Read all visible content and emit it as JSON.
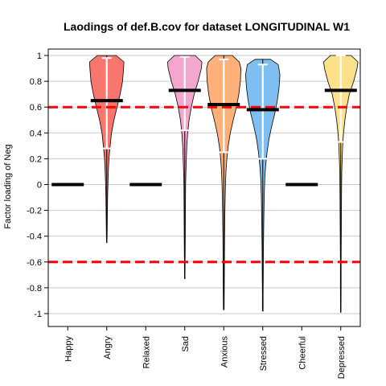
{
  "chart_data": {
    "type": "violin",
    "title": "Laodings of def.B.cov for dataset LONGITUDINAL W1",
    "xlabel": "",
    "ylabel": "Factor loading of Neg",
    "ylim": [
      -1.1,
      1.05
    ],
    "yticks": [
      "1",
      "0.8",
      "0.6",
      "0.4",
      "0.2",
      "0",
      "-0.2",
      "-0.4",
      "-0.6",
      "-0.8",
      "-1"
    ],
    "ytick_values": [
      1,
      0.8,
      0.6,
      0.4,
      0.2,
      0,
      -0.2,
      -0.4,
      -0.6,
      -0.8,
      -1
    ],
    "grid": true,
    "reference_lines": [
      0.6,
      -0.6
    ],
    "reference_line_color": "#ff0000",
    "categories": [
      "Happy",
      "Angry",
      "Relaxed",
      "Sad",
      "Anxious",
      "Stressed",
      "Cheerful",
      "Depressed"
    ],
    "series": [
      {
        "category": "Happy",
        "mean": 0,
        "color": null,
        "ymin": null,
        "ymax": null,
        "q1": null,
        "q3": null,
        "widths": []
      },
      {
        "category": "Angry",
        "mean": 0.65,
        "color": "#f8766d",
        "ymin": -0.45,
        "ymax": 1.0,
        "q1": 0.28,
        "q3": 0.98,
        "widths": [
          [
            1.0,
            0.55
          ],
          [
            0.95,
            1
          ],
          [
            0.9,
            0.98
          ],
          [
            0.8,
            0.92
          ],
          [
            0.7,
            0.78
          ],
          [
            0.6,
            0.6
          ],
          [
            0.5,
            0.42
          ],
          [
            0.4,
            0.28
          ],
          [
            0.3,
            0.2
          ],
          [
            0.2,
            0.13
          ],
          [
            0.1,
            0.09
          ],
          [
            0.0,
            0.07
          ],
          [
            -0.1,
            0.05
          ],
          [
            -0.2,
            0.04
          ],
          [
            -0.3,
            0.03
          ],
          [
            -0.4,
            0.02
          ],
          [
            -0.45,
            0.01
          ]
        ]
      },
      {
        "category": "Relaxed",
        "mean": 0,
        "color": null,
        "ymin": null,
        "ymax": null,
        "q1": null,
        "q3": null,
        "widths": []
      },
      {
        "category": "Sad",
        "mean": 0.73,
        "color": "#f4a6cf",
        "ymin": -0.73,
        "ymax": 1.0,
        "q1": 0.42,
        "q3": 0.99,
        "widths": [
          [
            1.0,
            0.6
          ],
          [
            0.95,
            1
          ],
          [
            0.9,
            0.97
          ],
          [
            0.8,
            0.78
          ],
          [
            0.7,
            0.55
          ],
          [
            0.6,
            0.38
          ],
          [
            0.5,
            0.25
          ],
          [
            0.4,
            0.17
          ],
          [
            0.3,
            0.12
          ],
          [
            0.2,
            0.09
          ],
          [
            0.1,
            0.07
          ],
          [
            0.0,
            0.05
          ],
          [
            -0.2,
            0.04
          ],
          [
            -0.4,
            0.03
          ],
          [
            -0.6,
            0.02
          ],
          [
            -0.73,
            0.01
          ]
        ]
      },
      {
        "category": "Anxious",
        "mean": 0.62,
        "color": "#fdb07a",
        "ymin": -0.97,
        "ymax": 1.0,
        "q1": 0.25,
        "q3": 0.97,
        "widths": [
          [
            1.0,
            0.5
          ],
          [
            0.95,
            0.9
          ],
          [
            0.9,
            1
          ],
          [
            0.8,
            0.97
          ],
          [
            0.7,
            0.88
          ],
          [
            0.6,
            0.74
          ],
          [
            0.5,
            0.55
          ],
          [
            0.4,
            0.38
          ],
          [
            0.3,
            0.26
          ],
          [
            0.2,
            0.18
          ],
          [
            0.1,
            0.13
          ],
          [
            0.0,
            0.1
          ],
          [
            -0.2,
            0.07
          ],
          [
            -0.4,
            0.05
          ],
          [
            -0.6,
            0.04
          ],
          [
            -0.8,
            0.03
          ],
          [
            -0.97,
            0.02
          ]
        ]
      },
      {
        "category": "Stressed",
        "mean": 0.58,
        "color": "#7fbef0",
        "ymin": -0.98,
        "ymax": 0.97,
        "q1": 0.2,
        "q3": 0.93,
        "widths": [
          [
            0.97,
            0.45
          ],
          [
            0.93,
            0.9
          ],
          [
            0.85,
            1
          ],
          [
            0.75,
            0.95
          ],
          [
            0.65,
            0.85
          ],
          [
            0.55,
            0.7
          ],
          [
            0.45,
            0.52
          ],
          [
            0.35,
            0.36
          ],
          [
            0.25,
            0.25
          ],
          [
            0.15,
            0.17
          ],
          [
            0.05,
            0.12
          ],
          [
            -0.1,
            0.08
          ],
          [
            -0.3,
            0.06
          ],
          [
            -0.5,
            0.04
          ],
          [
            -0.7,
            0.03
          ],
          [
            -0.85,
            0.02
          ],
          [
            -0.98,
            0.02
          ]
        ]
      },
      {
        "category": "Cheerful",
        "mean": 0,
        "color": null,
        "ymin": null,
        "ymax": null,
        "q1": null,
        "q3": null,
        "widths": []
      },
      {
        "category": "Depressed",
        "mean": 0.73,
        "color": "#fde08a",
        "ymin": -0.99,
        "ymax": 1.0,
        "q1": 0.33,
        "q3": 1.0,
        "widths": [
          [
            1.0,
            0.6
          ],
          [
            0.95,
            1
          ],
          [
            0.9,
            0.95
          ],
          [
            0.8,
            0.75
          ],
          [
            0.7,
            0.5
          ],
          [
            0.6,
            0.35
          ],
          [
            0.5,
            0.24
          ],
          [
            0.4,
            0.16
          ],
          [
            0.3,
            0.11
          ],
          [
            0.2,
            0.08
          ],
          [
            0.1,
            0.06
          ],
          [
            0.0,
            0.05
          ],
          [
            -0.2,
            0.04
          ],
          [
            -0.4,
            0.03
          ],
          [
            -0.6,
            0.02
          ],
          [
            -0.8,
            0.02
          ],
          [
            -0.99,
            0.01
          ]
        ]
      }
    ]
  }
}
